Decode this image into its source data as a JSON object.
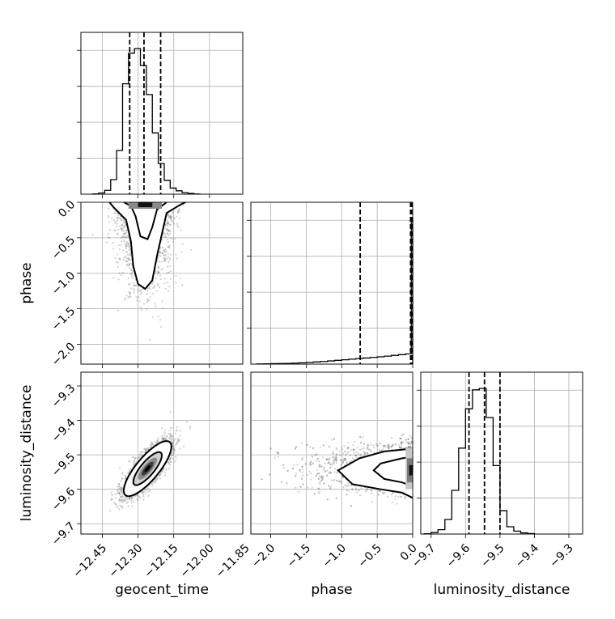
{
  "chart_data": {
    "type": "corner",
    "parameters": [
      "geocent_time",
      "phase",
      "luminosity_distance"
    ],
    "axis_labels": {
      "geocent_time": "geocent_time",
      "phase": "phase",
      "luminosity_distance": "luminosity_distance"
    },
    "ranges": {
      "geocent_time": [
        -12.54,
        -11.86
      ],
      "phase": [
        -2.28,
        0.0
      ],
      "luminosity_distance": [
        -9.73,
        -9.26
      ]
    },
    "ticks": {
      "geocent_time": {
        "values": [
          -12.45,
          -12.3,
          -12.15,
          -12.0,
          -11.85
        ],
        "labels": [
          "−12.45",
          "−12.30",
          "−12.15",
          "−12.00",
          "−11.85"
        ]
      },
      "phase": {
        "values": [
          -2.0,
          -1.5,
          -1.0,
          -0.5,
          0.0
        ],
        "labels": [
          "−2.0",
          "−1.5",
          "−1.0",
          "−0.5",
          "0.0"
        ]
      },
      "luminosity_distance": {
        "values": [
          -9.7,
          -9.6,
          -9.5,
          -9.4,
          -9.3
        ],
        "labels": [
          "−9.7",
          "−9.6",
          "−9.5",
          "−9.4",
          "−9.3"
        ]
      }
    },
    "quantiles": {
      "geocent_time": [
        -12.335,
        -12.275,
        -12.205
      ],
      "phase": [
        -0.74,
        -0.03,
        -0.015
      ],
      "luminosity_distance": [
        -9.59,
        -9.545,
        -9.5
      ]
    },
    "histograms": {
      "geocent_time": {
        "edges": [
          -12.49,
          -12.465,
          -12.44,
          -12.415,
          -12.39,
          -12.365,
          -12.34,
          -12.315,
          -12.29,
          -12.265,
          -12.24,
          -12.215,
          -12.19,
          -12.165,
          -12.14,
          -12.115,
          -12.09,
          -12.065,
          -12.04
        ],
        "counts": [
          2,
          8,
          25,
          95,
          285,
          720,
          920,
          950,
          840,
          650,
          400,
          200,
          90,
          40,
          22,
          10,
          5,
          1
        ]
      },
      "phase": {
        "edges": [
          -2.2,
          -2.1,
          -2.0,
          -1.9,
          -1.8,
          -1.7,
          -1.6,
          -1.5,
          -1.4,
          -1.3,
          -1.2,
          -1.1,
          -1.0,
          -0.9,
          -0.8,
          -0.7,
          -0.6,
          -0.5,
          -0.4,
          -0.3,
          -0.2,
          -0.1,
          -0.02,
          0.0
        ],
        "counts": [
          1,
          2,
          3,
          4,
          5,
          7,
          9,
          12,
          15,
          18,
          22,
          26,
          30,
          34,
          38,
          42,
          46,
          50,
          55,
          60,
          65,
          70,
          1000
        ]
      },
      "luminosity_distance": {
        "edges": [
          -9.72,
          -9.7,
          -9.68,
          -9.66,
          -9.64,
          -9.62,
          -9.6,
          -9.58,
          -9.56,
          -9.54,
          -9.52,
          -9.5,
          -9.48,
          -9.46,
          -9.44,
          -9.42,
          -9.4
        ],
        "counts": [
          2,
          10,
          30,
          100,
          300,
          590,
          860,
          990,
          1000,
          800,
          470,
          160,
          50,
          20,
          8,
          3
        ]
      }
    },
    "posterior_2d": {
      "phase_vs_geocent_time": {
        "mean": [
          -12.27,
          -0.35
        ],
        "sd": [
          0.055,
          0.45
        ],
        "point_count": 2600
      },
      "luminosity_distance_vs_geocent_time": {
        "mean": [
          -12.26,
          -9.54
        ],
        "sd": [
          0.05,
          0.04
        ],
        "correlation": 0.8,
        "point_count": 3000
      },
      "luminosity_distance_vs_phase": {
        "mean": [
          -0.55,
          -9.54
        ],
        "sd": [
          0.55,
          0.035
        ],
        "point_count": 2600
      }
    },
    "grid": true,
    "legend": "none"
  }
}
